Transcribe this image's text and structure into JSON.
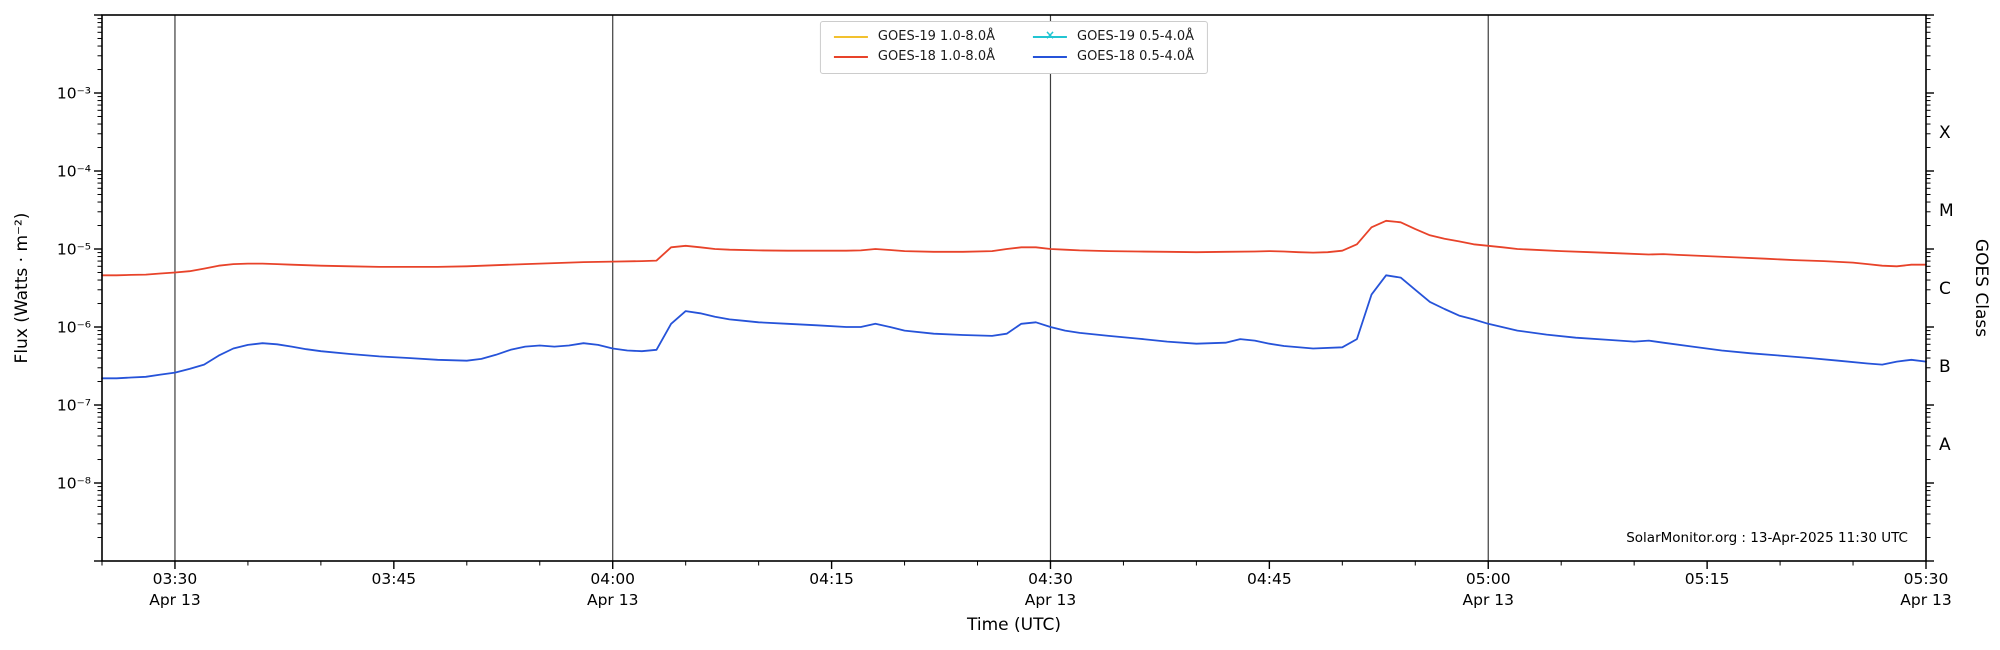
{
  "watermark": "SolarMonitor.org : 13-Apr-2025 11:30 UTC",
  "chart_data": {
    "type": "line",
    "title": "",
    "xlabel": "Time (UTC)",
    "ylabel": "Flux (Watts · m⁻²)",
    "ylabel_right": "GOES Class",
    "yscale": "log",
    "ylim": [
      1e-09,
      0.01
    ],
    "xlim_minutes_utc": [
      205,
      330
    ],
    "x_date": "Apr 13",
    "x_minor_step_minutes": 5,
    "x_major_ticks": [
      {
        "t": 210,
        "label": "03:30",
        "sub": "Apr 13"
      },
      {
        "t": 225,
        "label": "03:45",
        "sub": ""
      },
      {
        "t": 240,
        "label": "04:00",
        "sub": "Apr 13"
      },
      {
        "t": 255,
        "label": "04:15",
        "sub": ""
      },
      {
        "t": 270,
        "label": "04:30",
        "sub": "Apr 13"
      },
      {
        "t": 285,
        "label": "04:45",
        "sub": ""
      },
      {
        "t": 300,
        "label": "05:00",
        "sub": "Apr 13"
      },
      {
        "t": 315,
        "label": "05:15",
        "sub": ""
      },
      {
        "t": 330,
        "label": "05:30",
        "sub": "Apr 13"
      }
    ],
    "y_major_ticks": [
      {
        "flux": 0.001,
        "label": "10⁻³"
      },
      {
        "flux": 0.0001,
        "label": "10⁻⁴"
      },
      {
        "flux": 1e-05,
        "label": "10⁻⁵"
      },
      {
        "flux": 1e-06,
        "label": "10⁻⁶"
      },
      {
        "flux": 1e-07,
        "label": "10⁻⁷"
      },
      {
        "flux": 1e-08,
        "label": "10⁻⁸"
      }
    ],
    "goes_class_labels": [
      {
        "label": "X",
        "flux": 0.000316
      },
      {
        "label": "M",
        "flux": 3.16e-05
      },
      {
        "label": "C",
        "flux": 3.16e-06
      },
      {
        "label": "B",
        "flux": 3.16e-07
      },
      {
        "label": "A",
        "flux": 3.16e-08
      }
    ],
    "x_gridlines_minutes": [
      210,
      240,
      270,
      300
    ],
    "grid_color": "#3d3d3d",
    "legend_position": "top-center",
    "legend": [
      {
        "label": "GOES-19 1.0-8.0Å",
        "color": "#f2c12e",
        "marker": ""
      },
      {
        "label": "GOES-18 1.0-8.0Å",
        "color": "#e8432a",
        "marker": ""
      },
      {
        "label": "GOES-19 0.5-4.0Å",
        "color": "#22c5d2",
        "marker": "x"
      },
      {
        "label": "GOES-18 0.5-4.0Å",
        "color": "#2653d9",
        "marker": ""
      }
    ],
    "series": [
      {
        "name": "GOES-19 1.0-8.0Å",
        "color": "#f2c12e",
        "visible": false,
        "points": []
      },
      {
        "name": "GOES-18 1.0-8.0Å",
        "color": "#e8432a",
        "visible": true,
        "points": [
          [
            205,
            4.6e-06
          ],
          [
            206,
            4.6e-06
          ],
          [
            207,
            4.65e-06
          ],
          [
            208,
            4.7e-06
          ],
          [
            209,
            4.85e-06
          ],
          [
            210,
            5e-06
          ],
          [
            211,
            5.2e-06
          ],
          [
            212,
            5.6e-06
          ],
          [
            213,
            6.1e-06
          ],
          [
            214,
            6.4e-06
          ],
          [
            215,
            6.5e-06
          ],
          [
            216,
            6.5e-06
          ],
          [
            217,
            6.4e-06
          ],
          [
            218,
            6.3e-06
          ],
          [
            219,
            6.2e-06
          ],
          [
            220,
            6.1e-06
          ],
          [
            222,
            6e-06
          ],
          [
            224,
            5.9e-06
          ],
          [
            226,
            5.9e-06
          ],
          [
            228,
            5.9e-06
          ],
          [
            230,
            6e-06
          ],
          [
            232,
            6.2e-06
          ],
          [
            234,
            6.4e-06
          ],
          [
            236,
            6.6e-06
          ],
          [
            238,
            6.8e-06
          ],
          [
            240,
            6.9e-06
          ],
          [
            242,
            7e-06
          ],
          [
            243,
            7.1e-06
          ],
          [
            244,
            1.05e-05
          ],
          [
            245,
            1.1e-05
          ],
          [
            246,
            1.05e-05
          ],
          [
            247,
            1e-05
          ],
          [
            248,
            9.8e-06
          ],
          [
            250,
            9.6e-06
          ],
          [
            252,
            9.5e-06
          ],
          [
            254,
            9.5e-06
          ],
          [
            256,
            9.5e-06
          ],
          [
            257,
            9.6e-06
          ],
          [
            258,
            1e-05
          ],
          [
            259,
            9.7e-06
          ],
          [
            260,
            9.4e-06
          ],
          [
            262,
            9.2e-06
          ],
          [
            264,
            9.2e-06
          ],
          [
            266,
            9.4e-06
          ],
          [
            267,
            1e-05
          ],
          [
            268,
            1.05e-05
          ],
          [
            269,
            1.05e-05
          ],
          [
            270,
            1e-05
          ],
          [
            271,
            9.8e-06
          ],
          [
            272,
            9.6e-06
          ],
          [
            274,
            9.4e-06
          ],
          [
            276,
            9.3e-06
          ],
          [
            278,
            9.2e-06
          ],
          [
            280,
            9.1e-06
          ],
          [
            282,
            9.2e-06
          ],
          [
            284,
            9.3e-06
          ],
          [
            285,
            9.4e-06
          ],
          [
            286,
            9.3e-06
          ],
          [
            287,
            9.1e-06
          ],
          [
            288,
            9e-06
          ],
          [
            289,
            9.1e-06
          ],
          [
            290,
            9.5e-06
          ],
          [
            291,
            1.15e-05
          ],
          [
            292,
            1.9e-05
          ],
          [
            293,
            2.3e-05
          ],
          [
            294,
            2.2e-05
          ],
          [
            295,
            1.8e-05
          ],
          [
            296,
            1.5e-05
          ],
          [
            297,
            1.35e-05
          ],
          [
            298,
            1.25e-05
          ],
          [
            299,
            1.15e-05
          ],
          [
            300,
            1.1e-05
          ],
          [
            301,
            1.05e-05
          ],
          [
            302,
            1e-05
          ],
          [
            303,
            9.8e-06
          ],
          [
            305,
            9.4e-06
          ],
          [
            307,
            9.1e-06
          ],
          [
            309,
            8.8e-06
          ],
          [
            311,
            8.5e-06
          ],
          [
            312,
            8.6e-06
          ],
          [
            313,
            8.4e-06
          ],
          [
            315,
            8.1e-06
          ],
          [
            317,
            7.8e-06
          ],
          [
            319,
            7.5e-06
          ],
          [
            321,
            7.2e-06
          ],
          [
            323,
            7e-06
          ],
          [
            325,
            6.7e-06
          ],
          [
            326,
            6.4e-06
          ],
          [
            327,
            6.1e-06
          ],
          [
            328,
            6e-06
          ],
          [
            329,
            6.3e-06
          ],
          [
            330,
            6.3e-06
          ]
        ]
      },
      {
        "name": "GOES-19 0.5-4.0Å",
        "color": "#22c5d2",
        "visible": false,
        "points": []
      },
      {
        "name": "GOES-18 0.5-4.0Å",
        "color": "#2653d9",
        "visible": true,
        "points": [
          [
            205,
            2.2e-07
          ],
          [
            206,
            2.2e-07
          ],
          [
            207,
            2.25e-07
          ],
          [
            208,
            2.3e-07
          ],
          [
            209,
            2.45e-07
          ],
          [
            210,
            2.6e-07
          ],
          [
            211,
            2.9e-07
          ],
          [
            212,
            3.3e-07
          ],
          [
            213,
            4.3e-07
          ],
          [
            214,
            5.3e-07
          ],
          [
            215,
            5.9e-07
          ],
          [
            216,
            6.2e-07
          ],
          [
            217,
            6e-07
          ],
          [
            218,
            5.6e-07
          ],
          [
            219,
            5.2e-07
          ],
          [
            220,
            4.9e-07
          ],
          [
            222,
            4.5e-07
          ],
          [
            224,
            4.2e-07
          ],
          [
            226,
            4e-07
          ],
          [
            228,
            3.8e-07
          ],
          [
            230,
            3.7e-07
          ],
          [
            231,
            3.9e-07
          ],
          [
            232,
            4.4e-07
          ],
          [
            233,
            5.1e-07
          ],
          [
            234,
            5.6e-07
          ],
          [
            235,
            5.8e-07
          ],
          [
            236,
            5.6e-07
          ],
          [
            237,
            5.8e-07
          ],
          [
            238,
            6.2e-07
          ],
          [
            239,
            5.9e-07
          ],
          [
            240,
            5.3e-07
          ],
          [
            241,
            5e-07
          ],
          [
            242,
            4.9e-07
          ],
          [
            243,
            5.1e-07
          ],
          [
            244,
            1.1e-06
          ],
          [
            245,
            1.6e-06
          ],
          [
            246,
            1.5e-06
          ],
          [
            247,
            1.35e-06
          ],
          [
            248,
            1.25e-06
          ],
          [
            249,
            1.2e-06
          ],
          [
            250,
            1.15e-06
          ],
          [
            252,
            1.1e-06
          ],
          [
            254,
            1.05e-06
          ],
          [
            256,
            1e-06
          ],
          [
            257,
            1e-06
          ],
          [
            258,
            1.1e-06
          ],
          [
            259,
            1e-06
          ],
          [
            260,
            9e-07
          ],
          [
            262,
            8.2e-07
          ],
          [
            264,
            7.9e-07
          ],
          [
            266,
            7.7e-07
          ],
          [
            267,
            8.2e-07
          ],
          [
            268,
            1.1e-06
          ],
          [
            269,
            1.15e-06
          ],
          [
            270,
            1e-06
          ],
          [
            271,
            9e-07
          ],
          [
            272,
            8.4e-07
          ],
          [
            274,
            7.7e-07
          ],
          [
            276,
            7.1e-07
          ],
          [
            278,
            6.5e-07
          ],
          [
            280,
            6.1e-07
          ],
          [
            282,
            6.3e-07
          ],
          [
            283,
            7e-07
          ],
          [
            284,
            6.7e-07
          ],
          [
            285,
            6.1e-07
          ],
          [
            286,
            5.7e-07
          ],
          [
            288,
            5.3e-07
          ],
          [
            290,
            5.5e-07
          ],
          [
            291,
            7e-07
          ],
          [
            292,
            2.6e-06
          ],
          [
            293,
            4.6e-06
          ],
          [
            294,
            4.3e-06
          ],
          [
            295,
            3e-06
          ],
          [
            296,
            2.1e-06
          ],
          [
            297,
            1.7e-06
          ],
          [
            298,
            1.4e-06
          ],
          [
            299,
            1.25e-06
          ],
          [
            300,
            1.1e-06
          ],
          [
            302,
            9e-07
          ],
          [
            304,
            8e-07
          ],
          [
            306,
            7.3e-07
          ],
          [
            308,
            6.9e-07
          ],
          [
            310,
            6.5e-07
          ],
          [
            311,
            6.7e-07
          ],
          [
            312,
            6.3e-07
          ],
          [
            314,
            5.6e-07
          ],
          [
            316,
            5e-07
          ],
          [
            318,
            4.6e-07
          ],
          [
            320,
            4.3e-07
          ],
          [
            322,
            4e-07
          ],
          [
            324,
            3.7e-07
          ],
          [
            326,
            3.4e-07
          ],
          [
            327,
            3.3e-07
          ],
          [
            328,
            3.6e-07
          ],
          [
            329,
            3.8e-07
          ],
          [
            330,
            3.6e-07
          ]
        ]
      }
    ]
  }
}
